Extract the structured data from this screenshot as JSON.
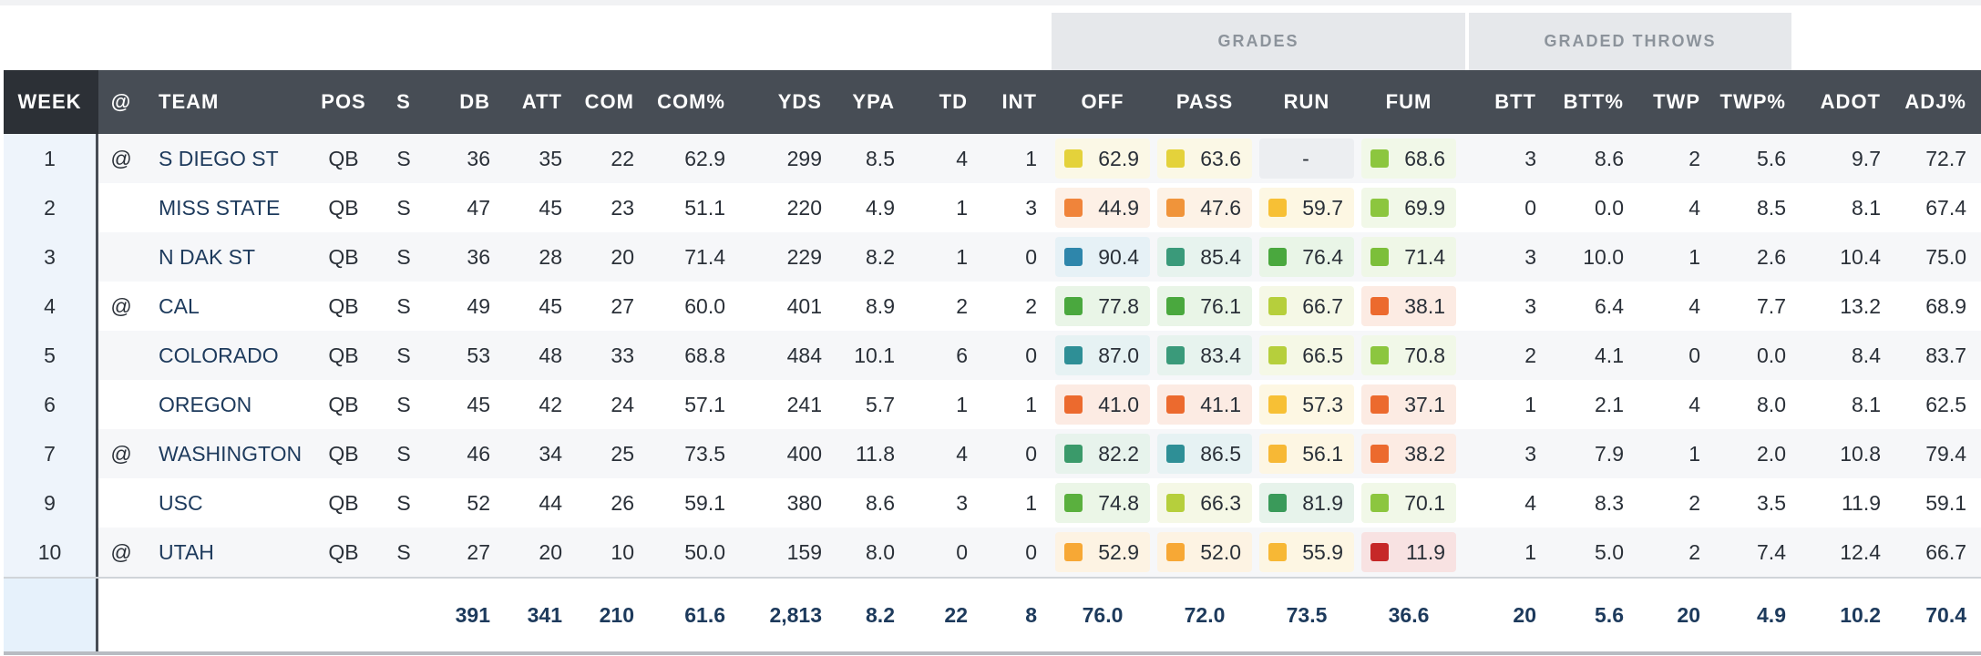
{
  "groups": {
    "grades": "GRADES",
    "graded_throws": "GRADED THROWS"
  },
  "columns": [
    "WEEK",
    "@",
    "TEAM",
    "POS",
    "S",
    "DB",
    "ATT",
    "COM",
    "COM%",
    "YDS",
    "YPA",
    "TD",
    "INT",
    "OFF",
    "PASS",
    "RUN",
    "FUM",
    "BTT",
    "BTT%",
    "TWP",
    "TWP%",
    "ADOT",
    "ADJ%"
  ],
  "rows": [
    {
      "week": "1",
      "at": "@",
      "team": "S DIEGO ST",
      "pos": "QB",
      "s": "S",
      "db": "36",
      "att": "35",
      "com": "22",
      "comp": "62.9",
      "yds": "299",
      "ypa": "8.5",
      "td": "4",
      "int": "1",
      "off": {
        "v": "62.9",
        "c": "#e4d23b",
        "bg": "#fbf8e6"
      },
      "pass": {
        "v": "63.6",
        "c": "#e4d23b",
        "bg": "#fbf8e6"
      },
      "run": {
        "v": "-",
        "c": "",
        "bg": "#eceef1"
      },
      "fum": {
        "v": "68.6",
        "c": "#8cc63f",
        "bg": "#f1f8e8"
      },
      "btt": "3",
      "bttp": "8.6",
      "twp": "2",
      "twpp": "5.6",
      "adot": "9.7",
      "adj": "72.7"
    },
    {
      "week": "2",
      "at": "",
      "team": "MISS STATE",
      "pos": "QB",
      "s": "S",
      "db": "47",
      "att": "45",
      "com": "23",
      "comp": "51.1",
      "yds": "220",
      "ypa": "4.9",
      "td": "1",
      "int": "3",
      "off": {
        "v": "44.9",
        "c": "#f0843a",
        "bg": "#fdf0e6"
      },
      "pass": {
        "v": "47.6",
        "c": "#f0943a",
        "bg": "#fdf2e6"
      },
      "run": {
        "v": "59.7",
        "c": "#f7c035",
        "bg": "#fdf7e3"
      },
      "fum": {
        "v": "69.9",
        "c": "#8cc63f",
        "bg": "#f1f8e8"
      },
      "btt": "0",
      "bttp": "0.0",
      "twp": "4",
      "twpp": "8.5",
      "adot": "8.1",
      "adj": "67.4"
    },
    {
      "week": "3",
      "at": "",
      "team": "N DAK ST",
      "pos": "QB",
      "s": "S",
      "db": "36",
      "att": "28",
      "com": "20",
      "comp": "71.4",
      "yds": "229",
      "ypa": "8.2",
      "td": "1",
      "int": "0",
      "off": {
        "v": "90.4",
        "c": "#2e86ab",
        "bg": "#e6f1f6"
      },
      "pass": {
        "v": "85.4",
        "c": "#3a9a7a",
        "bg": "#e7f3ee"
      },
      "run": {
        "v": "76.4",
        "c": "#4aa83e",
        "bg": "#e9f5e7"
      },
      "fum": {
        "v": "71.4",
        "c": "#7cbf3a",
        "bg": "#eff7e7"
      },
      "btt": "3",
      "bttp": "10.0",
      "twp": "1",
      "twpp": "2.6",
      "adot": "10.4",
      "adj": "75.0"
    },
    {
      "week": "4",
      "at": "@",
      "team": "CAL",
      "pos": "QB",
      "s": "S",
      "db": "49",
      "att": "45",
      "com": "27",
      "comp": "60.0",
      "yds": "401",
      "ypa": "8.9",
      "td": "2",
      "int": "2",
      "off": {
        "v": "77.8",
        "c": "#4aa83e",
        "bg": "#e9f5e7"
      },
      "pass": {
        "v": "76.1",
        "c": "#4aa83e",
        "bg": "#e9f5e7"
      },
      "run": {
        "v": "66.7",
        "c": "#b6cf3c",
        "bg": "#f5f8e6"
      },
      "fum": {
        "v": "38.1",
        "c": "#ec6a2e",
        "bg": "#fcebe3"
      },
      "btt": "3",
      "bttp": "6.4",
      "twp": "4",
      "twpp": "7.7",
      "adot": "13.2",
      "adj": "68.9"
    },
    {
      "week": "5",
      "at": "",
      "team": "COLORADO",
      "pos": "QB",
      "s": "S",
      "db": "53",
      "att": "48",
      "com": "33",
      "comp": "68.8",
      "yds": "484",
      "ypa": "10.1",
      "td": "6",
      "int": "0",
      "off": {
        "v": "87.0",
        "c": "#2e8f96",
        "bg": "#e6f2f3"
      },
      "pass": {
        "v": "83.4",
        "c": "#3a9a7a",
        "bg": "#e7f3ee"
      },
      "run": {
        "v": "66.5",
        "c": "#b6cf3c",
        "bg": "#f5f8e6"
      },
      "fum": {
        "v": "70.8",
        "c": "#8cc63f",
        "bg": "#f1f8e8"
      },
      "btt": "2",
      "bttp": "4.1",
      "twp": "0",
      "twpp": "0.0",
      "adot": "8.4",
      "adj": "83.7"
    },
    {
      "week": "6",
      "at": "",
      "team": "OREGON",
      "pos": "QB",
      "s": "S",
      "db": "45",
      "att": "42",
      "com": "24",
      "comp": "57.1",
      "yds": "241",
      "ypa": "5.7",
      "td": "1",
      "int": "1",
      "off": {
        "v": "41.0",
        "c": "#ec6a2e",
        "bg": "#fcebe3"
      },
      "pass": {
        "v": "41.1",
        "c": "#ec6a2e",
        "bg": "#fcebe3"
      },
      "run": {
        "v": "57.3",
        "c": "#f7c035",
        "bg": "#fdf7e3"
      },
      "fum": {
        "v": "37.1",
        "c": "#ec6a2e",
        "bg": "#fcebe3"
      },
      "btt": "1",
      "bttp": "2.1",
      "twp": "4",
      "twpp": "8.0",
      "adot": "8.1",
      "adj": "62.5"
    },
    {
      "week": "7",
      "at": "@",
      "team": "WASHINGTON",
      "pos": "QB",
      "s": "S",
      "db": "46",
      "att": "34",
      "com": "25",
      "comp": "73.5",
      "yds": "400",
      "ypa": "11.8",
      "td": "4",
      "int": "0",
      "off": {
        "v": "82.2",
        "c": "#3a9a6a",
        "bg": "#e7f3ec"
      },
      "pass": {
        "v": "86.5",
        "c": "#2e8f96",
        "bg": "#e6f2f3"
      },
      "run": {
        "v": "56.1",
        "c": "#f7b835",
        "bg": "#fdf6e3"
      },
      "fum": {
        "v": "38.2",
        "c": "#ec6a2e",
        "bg": "#fcebe3"
      },
      "btt": "3",
      "bttp": "7.9",
      "twp": "1",
      "twpp": "2.0",
      "adot": "10.8",
      "adj": "79.4"
    },
    {
      "week": "9",
      "at": "",
      "team": "USC",
      "pos": "QB",
      "s": "S",
      "db": "52",
      "att": "44",
      "com": "26",
      "comp": "59.1",
      "yds": "380",
      "ypa": "8.6",
      "td": "3",
      "int": "1",
      "off": {
        "v": "74.8",
        "c": "#5ab03e",
        "bg": "#ebf6e7"
      },
      "pass": {
        "v": "66.3",
        "c": "#b6cf3c",
        "bg": "#f5f8e6"
      },
      "run": {
        "v": "81.9",
        "c": "#3a9a5a",
        "bg": "#e7f3eb"
      },
      "fum": {
        "v": "70.1",
        "c": "#8cc63f",
        "bg": "#f1f8e8"
      },
      "btt": "4",
      "bttp": "8.3",
      "twp": "2",
      "twpp": "3.5",
      "adot": "11.9",
      "adj": "59.1"
    },
    {
      "week": "10",
      "at": "@",
      "team": "UTAH",
      "pos": "QB",
      "s": "S",
      "db": "27",
      "att": "20",
      "com": "10",
      "comp": "50.0",
      "yds": "159",
      "ypa": "8.0",
      "td": "0",
      "int": "0",
      "off": {
        "v": "52.9",
        "c": "#f7a835",
        "bg": "#fdf3e3"
      },
      "pass": {
        "v": "52.0",
        "c": "#f7a835",
        "bg": "#fdf3e3"
      },
      "run": {
        "v": "55.9",
        "c": "#f7b835",
        "bg": "#fdf6e3"
      },
      "fum": {
        "v": "11.9",
        "c": "#c62828",
        "bg": "#f8e2e2"
      },
      "btt": "1",
      "bttp": "5.0",
      "twp": "2",
      "twpp": "7.4",
      "adot": "12.4",
      "adj": "66.7"
    }
  ],
  "totals": {
    "db": "391",
    "att": "341",
    "com": "210",
    "comp": "61.6",
    "yds": "2,813",
    "ypa": "8.2",
    "td": "22",
    "int": "8",
    "off": "76.0",
    "pass": "72.0",
    "run": "73.5",
    "fum": "36.6",
    "btt": "20",
    "bttp": "5.6",
    "twp": "20",
    "twpp": "4.9",
    "adot": "10.2",
    "adj": "70.4"
  }
}
